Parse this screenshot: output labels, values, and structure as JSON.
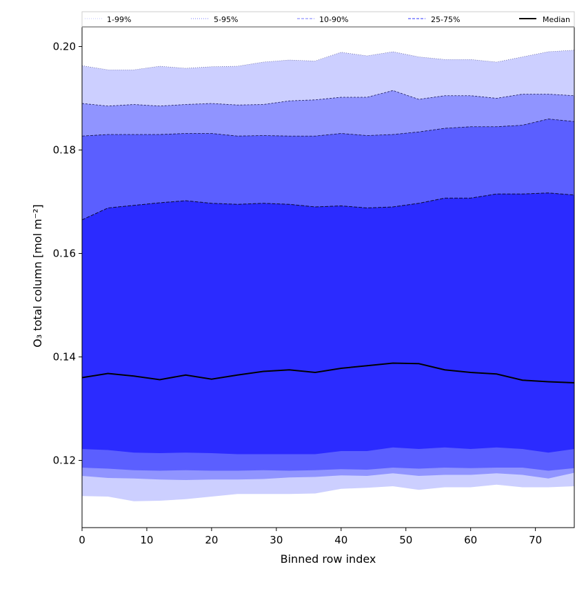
{
  "chart_data": {
    "type": "area",
    "title": "",
    "xlabel": "Binned row index",
    "ylabel": "O₃ total column [mol m⁻²]",
    "xlim": [
      0,
      76
    ],
    "ylim": [
      0.107,
      0.2038
    ],
    "xticks": [
      0,
      10,
      20,
      30,
      40,
      50,
      60,
      70
    ],
    "yticks": [
      0.12,
      0.14,
      0.16,
      0.18,
      0.2
    ],
    "ytick_labels": [
      "0.12",
      "0.14",
      "0.16",
      "0.18",
      "0.20"
    ],
    "grid": false,
    "legend_position": "top",
    "x": [
      0,
      4,
      8,
      12,
      16,
      20,
      24,
      28,
      32,
      36,
      40,
      44,
      48,
      52,
      56,
      60,
      64,
      68,
      72,
      76
    ],
    "bands": [
      {
        "name": "1-99%",
        "color": "#cccfff",
        "lower": [
          0.1131,
          0.113,
          0.1121,
          0.1122,
          0.1125,
          0.113,
          0.1135,
          0.1135,
          0.1135,
          0.1136,
          0.1145,
          0.1147,
          0.115,
          0.1143,
          0.1148,
          0.1148,
          0.1153,
          0.1148,
          0.1148,
          0.115
        ],
        "upper": [
          0.1963,
          0.1955,
          0.1955,
          0.1962,
          0.1958,
          0.1961,
          0.1962,
          0.197,
          0.1974,
          0.1972,
          0.1989,
          0.1982,
          0.199,
          0.198,
          0.1975,
          0.1975,
          0.197,
          0.198,
          0.199,
          0.1993
        ]
      },
      {
        "name": "5-95%",
        "color": "#9094ff",
        "lower": [
          0.117,
          0.1166,
          0.1165,
          0.1163,
          0.1162,
          0.1163,
          0.1163,
          0.1164,
          0.1167,
          0.1168,
          0.1171,
          0.117,
          0.1175,
          0.117,
          0.1172,
          0.1172,
          0.1175,
          0.1172,
          0.1165,
          0.1176
        ],
        "upper": [
          0.189,
          0.1885,
          0.1888,
          0.1885,
          0.1888,
          0.189,
          0.1887,
          0.1888,
          0.1895,
          0.1897,
          0.1902,
          0.1902,
          0.1915,
          0.1898,
          0.1905,
          0.1905,
          0.19,
          0.1908,
          0.1908,
          0.1905
        ]
      },
      {
        "name": "10-90%",
        "color": "#5b5fff",
        "lower": [
          0.1186,
          0.1184,
          0.1181,
          0.118,
          0.1181,
          0.118,
          0.118,
          0.1181,
          0.118,
          0.1181,
          0.1183,
          0.1182,
          0.1186,
          0.1184,
          0.1186,
          0.1185,
          0.1186,
          0.1186,
          0.118,
          0.1185
        ]
      },
      {
        "name": "25-75%",
        "color": "#2b2bff",
        "lower": [
          0.1222,
          0.122,
          0.1215,
          0.1214,
          0.1215,
          0.1214,
          0.1212,
          0.1212,
          0.1212,
          0.1212,
          0.1218,
          0.1218,
          0.1225,
          0.1222,
          0.1225,
          0.1222,
          0.1225,
          0.1222,
          0.1215,
          0.1222
        ],
        "upper": [
          0.1665,
          0.1688,
          0.1693,
          0.1698,
          0.1702,
          0.1697,
          0.1695,
          0.1697,
          0.1695,
          0.169,
          0.1692,
          0.1688,
          0.169,
          0.1697,
          0.1707,
          0.1707,
          0.1715,
          0.1715,
          0.1717,
          0.1713
        ]
      }
    ],
    "band_10_90_upper": [
      0.1827,
      0.183,
      0.183,
      0.183,
      0.1832,
      0.1832,
      0.1827,
      0.1828,
      0.1827,
      0.1827,
      0.1832,
      0.1828,
      0.183,
      0.1835,
      0.1842,
      0.1845,
      0.1845,
      0.1848,
      0.186,
      0.1855
    ],
    "median": {
      "name": "Median",
      "color": "#000000",
      "values": [
        0.136,
        0.1368,
        0.1363,
        0.1356,
        0.1365,
        0.1357,
        0.1365,
        0.1372,
        0.1375,
        0.137,
        0.1378,
        0.1383,
        0.1388,
        0.1387,
        0.1375,
        0.137,
        0.1367,
        0.1355,
        0.1352,
        0.135
      ]
    },
    "legend": [
      {
        "label": "1-99%",
        "style": "dotted",
        "color": "#cccfff"
      },
      {
        "label": "5-95%",
        "style": "dotted",
        "color": "#9094ff"
      },
      {
        "label": "10-90%",
        "style": "dashed",
        "color": "#9094ff"
      },
      {
        "label": "25-75%",
        "style": "dashed",
        "color": "#5b5fff"
      },
      {
        "label": "Median",
        "style": "solid",
        "color": "#000000"
      }
    ]
  }
}
